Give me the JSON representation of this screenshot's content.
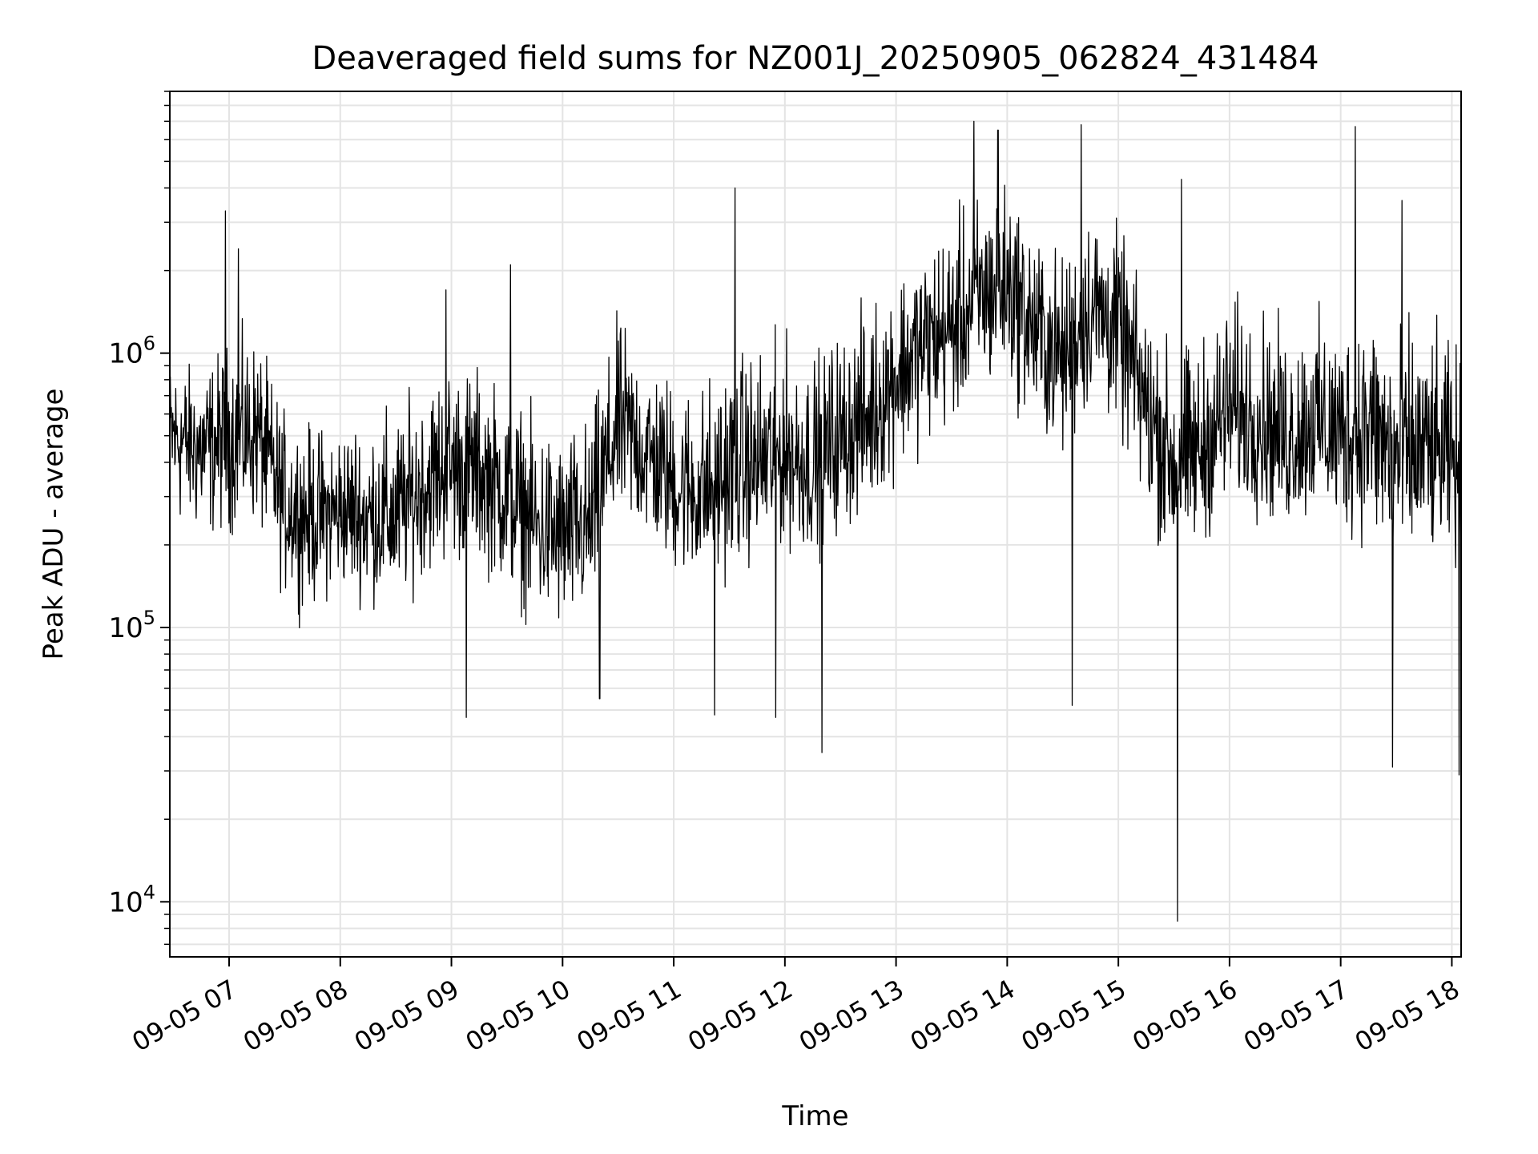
{
  "chart_data": {
    "type": "line",
    "title": "Deaveraged field sums for NZ001J_20250905_062824_431484",
    "xlabel": "Time",
    "ylabel": "Peak ADU - average",
    "x_type": "datetime",
    "y_scale": "log",
    "xlim": [
      "09-05 06:28",
      "09-05 18:05"
    ],
    "ylim": [
      6300,
      9000000
    ],
    "x_ticks": [
      "09-05 07",
      "09-05 08",
      "09-05 09",
      "09-05 10",
      "09-05 11",
      "09-05 12",
      "09-05 13",
      "09-05 14",
      "09-05 15",
      "09-05 16",
      "09-05 17",
      "09-05 18"
    ],
    "y_ticks": [
      {
        "base": "10",
        "exp": "4",
        "value": 10000
      },
      {
        "base": "10",
        "exp": "5",
        "value": 100000
      },
      {
        "base": "10",
        "exp": "6",
        "value": 1000000
      }
    ],
    "grid": true,
    "line_color": "#000000",
    "series": [
      {
        "x": [
          "09-05 06:30",
          "09-05 06:45",
          "09-05 07:00",
          "09-05 07:15",
          "09-05 07:30",
          "09-05 07:45",
          "09-05 08:00",
          "09-05 08:15",
          "09-05 08:30",
          "09-05 08:45",
          "09-05 09:00",
          "09-05 09:15",
          "09-05 09:30",
          "09-05 09:45",
          "09-05 10:00",
          "09-05 10:15",
          "09-05 10:30",
          "09-05 10:45",
          "09-05 11:00",
          "09-05 11:15",
          "09-05 11:30",
          "09-05 11:45",
          "09-05 12:00",
          "09-05 12:15",
          "09-05 12:30",
          "09-05 12:45",
          "09-05 13:00",
          "09-05 13:15",
          "09-05 13:30",
          "09-05 13:45",
          "09-05 14:00",
          "09-05 14:15",
          "09-05 14:30",
          "09-05 14:45",
          "09-05 15:00",
          "09-05 15:15",
          "09-05 15:30",
          "09-05 15:45",
          "09-05 16:00",
          "09-05 16:15",
          "09-05 16:30",
          "09-05 16:45",
          "09-05 17:00",
          "09-05 17:15",
          "09-05 17:30",
          "09-05 17:45",
          "09-05 18:00"
        ],
        "y": [
          500000,
          450000,
          480000,
          520000,
          280000,
          250000,
          260000,
          240000,
          250000,
          320000,
          380000,
          360000,
          300000,
          230000,
          210000,
          230000,
          550000,
          420000,
          330000,
          300000,
          350000,
          380000,
          420000,
          380000,
          480000,
          560000,
          820000,
          1050000,
          1200000,
          1600000,
          1800000,
          1200000,
          950000,
          1500000,
          1250000,
          650000,
          380000,
          430000,
          620000,
          570000,
          480000,
          560000,
          500000,
          520000,
          400000,
          420000,
          400000
        ],
        "noise_low": [
          180000,
          160000,
          170000,
          180000,
          100000,
          90000,
          110000,
          100000,
          90000,
          120000,
          130000,
          130000,
          100000,
          80000,
          70000,
          80000,
          170000,
          160000,
          120000,
          110000,
          120000,
          140000,
          150000,
          140000,
          170000,
          200000,
          280000,
          350000,
          420000,
          500000,
          560000,
          380000,
          300000,
          450000,
          380000,
          180000,
          120000,
          150000,
          220000,
          190000,
          160000,
          190000,
          150000,
          160000,
          90000,
          140000,
          120000
        ],
        "noise_high": [
          1200000,
          1100000,
          1500000,
          1500000,
          800000,
          700000,
          750000,
          900000,
          800000,
          1100000,
          1300000,
          1200000,
          1000000,
          800000,
          700000,
          800000,
          1800000,
          1400000,
          1100000,
          1100000,
          1400000,
          1500000,
          1600000,
          1400000,
          1700000,
          2100000,
          2800000,
          3500000,
          4200000,
          5200000,
          5600000,
          3800000,
          3000000,
          4600000,
          3800000,
          2000000,
          1400000,
          1600000,
          2300000,
          2000000,
          1700000,
          1900000,
          1800000,
          2300000,
          2000000,
          1800000,
          1500000
        ],
        "spikes": [
          {
            "t": "09-05 06:58",
            "y": 3300000
          },
          {
            "t": "09-05 07:05",
            "y": 2400000
          },
          {
            "t": "09-05 08:57",
            "y": 1700000
          },
          {
            "t": "09-05 09:08",
            "y": 47000
          },
          {
            "t": "09-05 09:32",
            "y": 2100000
          },
          {
            "t": "09-05 10:20",
            "y": 55000
          },
          {
            "t": "09-05 11:22",
            "y": 48000
          },
          {
            "t": "09-05 11:33",
            "y": 4000000
          },
          {
            "t": "09-05 11:55",
            "y": 47000
          },
          {
            "t": "09-05 12:20",
            "y": 35000
          },
          {
            "t": "09-05 13:42",
            "y": 7000000
          },
          {
            "t": "09-05 13:55",
            "y": 6500000
          },
          {
            "t": "09-05 14:35",
            "y": 52000
          },
          {
            "t": "09-05 14:40",
            "y": 6800000
          },
          {
            "t": "09-05 15:32",
            "y": 8500
          },
          {
            "t": "09-05 15:34",
            "y": 4300000
          },
          {
            "t": "09-05 17:08",
            "y": 6700000
          },
          {
            "t": "09-05 17:28",
            "y": 31000
          },
          {
            "t": "09-05 17:33",
            "y": 3600000
          },
          {
            "t": "09-05 18:04",
            "y": 29000
          }
        ]
      }
    ]
  }
}
